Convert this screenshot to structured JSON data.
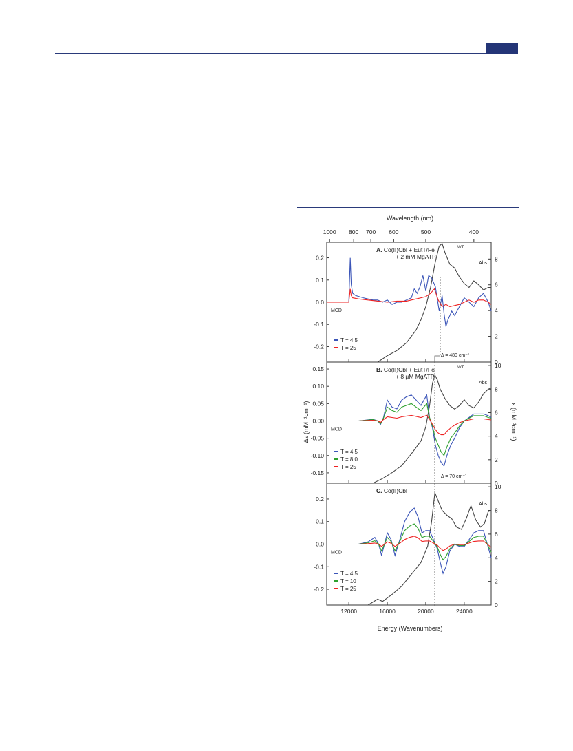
{
  "page": {
    "header_color": "#243577"
  },
  "chart_data": {
    "type": "line",
    "top_axis": {
      "label": "Wavelength (nm)",
      "tick_values_nm": [
        1000,
        800,
        700,
        600,
        500,
        400
      ],
      "tick_labels": [
        "1000",
        "800",
        "700",
        "600",
        "500",
        "400"
      ]
    },
    "x": {
      "label": "Energy (Wavenumbers)",
      "range": [
        9700,
        26800
      ],
      "ticks": [
        12000,
        16000,
        20000,
        24000
      ],
      "tick_labels": [
        "12000",
        "16000",
        "20000",
        "24000"
      ]
    },
    "y_left_label": "Δε (mM⁻¹cm⁻¹)",
    "y_right_label": "ε (mM⁻¹cm⁻¹)",
    "colors": {
      "abs": "#444444",
      "T4.5": "#3b55b8",
      "T8": "#2ea02e",
      "T10": "#2ea02e",
      "T25": "#ee2222"
    },
    "panels": [
      {
        "id": "A",
        "title_bold": "A.",
        "title_lines": [
          "Co(II)Cbl + EutT/Fe",
          "+ 2 mM MgATP"
        ],
        "superscript": "WT",
        "ylim": [
          -0.27,
          0.27
        ],
        "yticks": [
          -0.2,
          -0.1,
          0.0,
          0.1,
          0.2
        ],
        "ytick_labels": [
          "-0.2",
          "-0.1",
          "0.0",
          "0.1",
          "0.2"
        ],
        "ylim_right": [
          0,
          9.3
        ],
        "yticks_right": [
          0,
          2,
          4,
          6,
          8
        ],
        "mcd_label": "MCD",
        "abs_label": "Abs",
        "delta_label": "Δ = 480 cm⁻¹",
        "legend": [
          "T = 4.5",
          "T = 25"
        ],
        "abs": {
          "x": [
            15000,
            16000,
            17000,
            18000,
            19000,
            19500,
            20000,
            20500,
            21000,
            21400,
            21700,
            22000,
            22500,
            23000,
            23500,
            24000,
            24500,
            25000,
            25500,
            26000,
            26500,
            26800
          ],
          "y": [
            0,
            0.5,
            0.9,
            1.5,
            2.5,
            3.3,
            4.3,
            5.8,
            7.8,
            9.0,
            9.2,
            8.5,
            7.6,
            7.3,
            6.6,
            6.1,
            5.8,
            6.3,
            6.0,
            5.6,
            5.8,
            5.8
          ]
        },
        "series": [
          {
            "name": "T = 4.5",
            "color": "#3b55b8",
            "x": [
              9700,
              11500,
              12000,
              12150,
              12250,
              12400,
              12700,
              13500,
              14500,
              15000,
              15500,
              16000,
              16500,
              17000,
              17500,
              18000,
              18500,
              18800,
              19100,
              19400,
              19700,
              20000,
              20300,
              20600,
              21000,
              21400,
              21700,
              21900,
              22100,
              22300,
              22700,
              23000,
              23500,
              24000,
              24500,
              25000,
              25500,
              26000,
              26500,
              26800
            ],
            "y": [
              0,
              0,
              0,
              0.2,
              0.08,
              0.04,
              0.03,
              0.02,
              0.01,
              0.01,
              0.0,
              0.01,
              -0.01,
              0.0,
              0.0,
              0.01,
              0.02,
              0.06,
              0.04,
              0.07,
              0.12,
              0.05,
              0.12,
              0.11,
              0.07,
              -0.04,
              0.03,
              -0.05,
              -0.11,
              -0.08,
              -0.04,
              -0.06,
              -0.02,
              0.02,
              0.0,
              -0.02,
              0.02,
              0.04,
              0.0,
              -0.04
            ]
          },
          {
            "name": "T = 25",
            "color": "#ee2222",
            "x": [
              9700,
              11500,
              12000,
              12150,
              12250,
              12400,
              13000,
              14000,
              15000,
              16000,
              17000,
              18000,
              18500,
              19000,
              19500,
              20000,
              20500,
              20900,
              21300,
              21700,
              22100,
              22500,
              23000,
              23500,
              24000,
              24500,
              25000,
              25500,
              26000,
              26500,
              26800
            ],
            "y": [
              0,
              0,
              0,
              0.06,
              0.03,
              0.02,
              0.015,
              0.01,
              0.005,
              0.0,
              0.005,
              0.005,
              0.01,
              0.015,
              0.02,
              0.025,
              0.04,
              0.06,
              0.01,
              -0.02,
              -0.01,
              -0.02,
              -0.015,
              -0.01,
              0.0,
              0.01,
              0.0,
              0.01,
              0.01,
              0.0,
              -0.01
            ]
          }
        ]
      },
      {
        "id": "B",
        "title_bold": "B.",
        "title_lines": [
          "Co(II)Cbl + EutT/Fe",
          "+ 8 μM MgATP"
        ],
        "superscript": "WT",
        "ylim": [
          -0.18,
          0.17
        ],
        "yticks": [
          -0.15,
          -0.1,
          -0.05,
          0.0,
          0.05,
          0.1,
          0.15
        ],
        "ytick_labels": [
          "-0.15",
          "-0.10",
          "-0.05",
          "0.00",
          "0.05",
          "0.10",
          "0.15"
        ],
        "ylim_right": [
          0,
          10.3
        ],
        "yticks_right": [
          0,
          2,
          4,
          6,
          8,
          10
        ],
        "mcd_label": "MCD",
        "abs_label": "Abs",
        "delta_label": "Δ = 70 cm⁻¹",
        "legend": [
          "T = 4.5",
          "T = 8.0",
          "T = 25"
        ],
        "abs": {
          "x": [
            14500,
            15500,
            16500,
            17500,
            18500,
            19500,
            20000,
            20400,
            20700,
            20950,
            21200,
            21500,
            22000,
            22500,
            23000,
            23500,
            24000,
            24500,
            25000,
            25500,
            26000,
            26500,
            26800
          ],
          "y": [
            0,
            0.4,
            0.9,
            1.5,
            2.5,
            3.6,
            4.8,
            6.6,
            8.5,
            9.2,
            8.8,
            8.0,
            7.2,
            6.6,
            6.3,
            6.6,
            7.1,
            6.6,
            6.4,
            6.9,
            7.6,
            8.0,
            8.1
          ]
        },
        "series": [
          {
            "name": "T = 4.5",
            "color": "#3b55b8",
            "x": [
              9700,
              13000,
              14500,
              15000,
              15300,
              15600,
              16000,
              16500,
              17000,
              17500,
              18000,
              18500,
              19000,
              19500,
              19800,
              20100,
              20400,
              20700,
              21000,
              21300,
              21600,
              21900,
              22200,
              22600,
              23000,
              23500,
              24000,
              24500,
              25000,
              25500,
              26000,
              26500,
              26800
            ],
            "y": [
              0,
              0,
              0.005,
              0.0,
              -0.01,
              0.01,
              0.06,
              0.04,
              0.035,
              0.06,
              0.07,
              0.075,
              0.06,
              0.045,
              0.06,
              0.075,
              0.01,
              -0.02,
              -0.07,
              -0.1,
              -0.12,
              -0.13,
              -0.1,
              -0.07,
              -0.05,
              -0.02,
              0.0,
              0.01,
              0.02,
              0.02,
              0.02,
              0.015,
              0.01
            ]
          },
          {
            "name": "T = 8.0",
            "color": "#2ea02e",
            "x": [
              9700,
              13000,
              14500,
              15000,
              15300,
              15600,
              16000,
              16500,
              17000,
              17500,
              18000,
              18500,
              19000,
              19500,
              19800,
              20100,
              20400,
              20700,
              21000,
              21300,
              21600,
              21900,
              22200,
              22600,
              23000,
              23500,
              24000,
              24500,
              25000,
              25500,
              26000,
              26500,
              26800
            ],
            "y": [
              0,
              0,
              0.004,
              0.0,
              -0.008,
              0.008,
              0.04,
              0.03,
              0.025,
              0.04,
              0.045,
              0.05,
              0.04,
              0.03,
              0.04,
              0.05,
              0.01,
              -0.015,
              -0.05,
              -0.07,
              -0.09,
              -0.1,
              -0.075,
              -0.05,
              -0.035,
              -0.015,
              0.0,
              0.008,
              0.015,
              0.015,
              0.015,
              0.01,
              0.008
            ]
          },
          {
            "name": "T = 25",
            "color": "#ee2222",
            "x": [
              9700,
              13000,
              14500,
              15000,
              15300,
              15600,
              16000,
              16500,
              17000,
              17500,
              18000,
              18500,
              19000,
              19500,
              19800,
              20100,
              20400,
              20700,
              21000,
              21300,
              21600,
              21900,
              22200,
              22600,
              23000,
              23500,
              24000,
              24500,
              25000,
              25500,
              26000,
              26500,
              26800
            ],
            "y": [
              0,
              0,
              0.002,
              0.0,
              -0.004,
              0.004,
              0.012,
              0.01,
              0.008,
              0.012,
              0.014,
              0.016,
              0.013,
              0.01,
              0.013,
              0.016,
              0.005,
              -0.01,
              -0.025,
              -0.035,
              -0.04,
              -0.04,
              -0.03,
              -0.02,
              -0.012,
              -0.005,
              0.0,
              0.003,
              0.006,
              0.006,
              0.006,
              0.004,
              0.003
            ]
          }
        ]
      },
      {
        "id": "C",
        "title_bold": "C.",
        "title_lines": [
          "Co(II)Cbl"
        ],
        "superscript": "",
        "ylim": [
          -0.27,
          0.27
        ],
        "yticks": [
          -0.2,
          -0.1,
          0.0,
          0.1,
          0.2
        ],
        "ytick_labels": [
          "-0.2",
          "-0.1",
          "0.0",
          "0.1",
          "0.2"
        ],
        "ylim_right": [
          0,
          10.3
        ],
        "yticks_right": [
          0,
          2,
          4,
          6,
          8,
          10
        ],
        "mcd_label": "MCD",
        "abs_label": "Abs",
        "delta_label": "",
        "legend": [
          "T = 4.5",
          "T = 10",
          "T = 25"
        ],
        "abs": {
          "x": [
            14000,
            15000,
            15500,
            16500,
            17500,
            18500,
            19500,
            20200,
            20600,
            20950,
            21300,
            21700,
            22200,
            22700,
            23200,
            23700,
            24200,
            24700,
            25200,
            25700,
            26100,
            26500,
            26800
          ],
          "y": [
            0,
            0.5,
            0.3,
            0.9,
            1.6,
            2.6,
            3.6,
            5.0,
            7.0,
            9.5,
            8.8,
            8.0,
            7.6,
            7.3,
            6.6,
            6.4,
            7.3,
            8.4,
            7.2,
            6.6,
            6.9,
            7.9,
            8.0
          ]
        },
        "series": [
          {
            "name": "T = 4.5",
            "color": "#3b55b8",
            "x": [
              9700,
              13000,
              14000,
              14700,
              15100,
              15400,
              15700,
              16000,
              16400,
              16800,
              17300,
              17800,
              18300,
              18800,
              19200,
              19600,
              20000,
              20400,
              20800,
              21200,
              21500,
              21800,
              22100,
              22500,
              23000,
              23500,
              24000,
              24500,
              25000,
              25500,
              26000,
              26400,
              26800
            ],
            "y": [
              0,
              0,
              0.01,
              0.03,
              0.0,
              -0.05,
              0.0,
              0.05,
              0.02,
              -0.05,
              0.02,
              0.1,
              0.14,
              0.16,
              0.12,
              0.05,
              0.06,
              0.06,
              0.02,
              -0.02,
              -0.08,
              -0.13,
              -0.1,
              -0.03,
              0.0,
              -0.01,
              -0.01,
              0.02,
              0.05,
              0.06,
              0.06,
              0.0,
              -0.06
            ]
          },
          {
            "name": "T = 10",
            "color": "#2ea02e",
            "x": [
              9700,
              13000,
              14000,
              14700,
              15100,
              15400,
              15700,
              16000,
              16400,
              16800,
              17300,
              17800,
              18300,
              18800,
              19200,
              19600,
              20000,
              20400,
              20800,
              21200,
              21500,
              21800,
              22100,
              22500,
              23000,
              23500,
              24000,
              24500,
              25000,
              25500,
              26000,
              26400,
              26800
            ],
            "y": [
              0,
              0,
              0.006,
              0.015,
              0.0,
              -0.03,
              0.0,
              0.03,
              0.012,
              -0.03,
              0.012,
              0.06,
              0.08,
              0.09,
              0.07,
              0.03,
              0.035,
              0.035,
              0.012,
              -0.012,
              -0.045,
              -0.07,
              -0.055,
              -0.02,
              0.0,
              -0.006,
              -0.006,
              0.012,
              0.03,
              0.035,
              0.035,
              0.0,
              -0.035
            ]
          },
          {
            "name": "T = 25",
            "color": "#ee2222",
            "x": [
              9700,
              13000,
              14000,
              14700,
              15100,
              15400,
              15700,
              16000,
              16400,
              16800,
              17300,
              17800,
              18300,
              18800,
              19200,
              19600,
              20000,
              20400,
              20800,
              21200,
              21500,
              21800,
              22100,
              22500,
              23000,
              23500,
              24000,
              24500,
              25000,
              25500,
              26000,
              26400,
              26800
            ],
            "y": [
              0,
              0,
              0.002,
              0.005,
              0.0,
              -0.01,
              0.0,
              0.01,
              0.004,
              -0.01,
              0.004,
              0.02,
              0.03,
              0.035,
              0.028,
              0.012,
              0.014,
              0.014,
              0.005,
              -0.005,
              -0.018,
              -0.028,
              -0.022,
              -0.008,
              0.0,
              -0.002,
              -0.002,
              0.005,
              0.012,
              0.014,
              0.014,
              0.0,
              -0.014
            ]
          }
        ]
      }
    ]
  }
}
